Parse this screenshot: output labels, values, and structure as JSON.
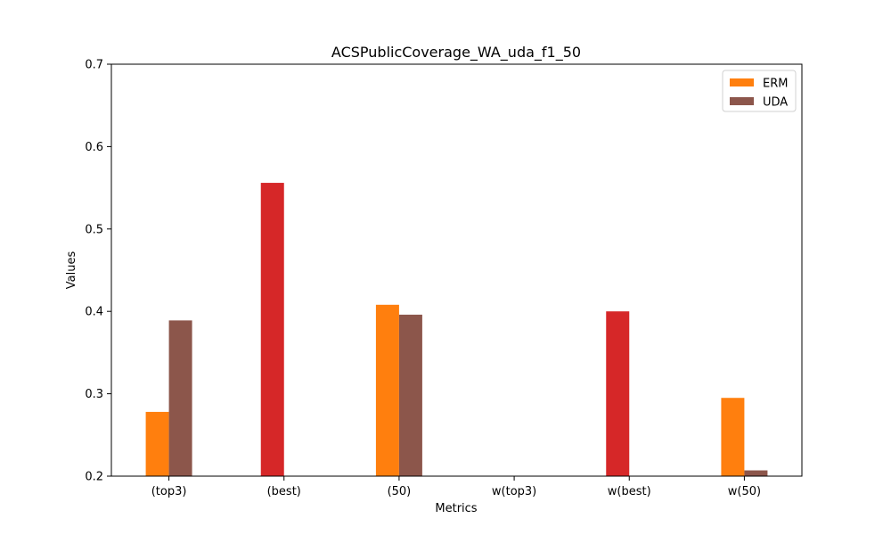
{
  "chart_data": {
    "type": "bar",
    "title": "ACSPublicCoverage_WA_uda_f1_50",
    "xlabel": "Metrics",
    "ylabel": "Values",
    "ylim": [
      0.2,
      0.7
    ],
    "yticks": [
      "0.2",
      "0.3",
      "0.4",
      "0.5",
      "0.6",
      "0.7"
    ],
    "categories": [
      "(top3)",
      "(best)",
      "(50)",
      "w(top3)",
      "w(best)",
      "w(50)"
    ],
    "series": [
      {
        "name": "ERM",
        "color": "#ff7f0e",
        "values": [
          0.278,
          null,
          0.408,
          null,
          null,
          0.295
        ]
      },
      {
        "name": "UDA",
        "color": "#8c564b",
        "values": [
          0.389,
          null,
          0.396,
          null,
          null,
          0.207
        ]
      },
      {
        "color": "#d62728",
        "values": [
          null,
          0.556,
          null,
          null,
          0.4,
          null
        ]
      }
    ],
    "legend": {
      "placement": "top-right",
      "entries": [
        "ERM",
        "UDA"
      ]
    },
    "grid": false
  }
}
